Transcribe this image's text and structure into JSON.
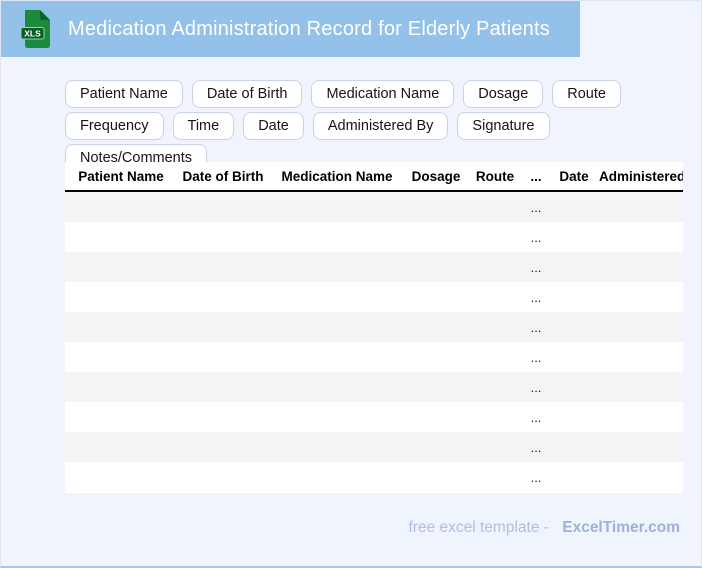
{
  "header": {
    "title": "Medication Administration Record for Elderly Patients",
    "bar_color": "#93c1e9",
    "file_icon_label": "XLS",
    "file_icon_color": "#1c8a3c"
  },
  "field_chips": [
    "Patient Name",
    "Date of Birth",
    "Medication Name",
    "Dosage",
    "Route",
    "Frequency",
    "Time",
    "Date",
    "Administered By",
    "Signature",
    "Notes/Comments"
  ],
  "table": {
    "columns": [
      "Patient Name",
      "Date of Birth",
      "Medication Name",
      "Dosage",
      "Route",
      "...",
      "Date",
      "Administered By"
    ],
    "rows": [
      [
        "",
        "",
        "",
        "",
        "",
        "...",
        "",
        ""
      ],
      [
        "",
        "",
        "",
        "",
        "",
        "...",
        "",
        ""
      ],
      [
        "",
        "",
        "",
        "",
        "",
        "...",
        "",
        ""
      ],
      [
        "",
        "",
        "",
        "",
        "",
        "...",
        "",
        ""
      ],
      [
        "",
        "",
        "",
        "",
        "",
        "...",
        "",
        ""
      ],
      [
        "",
        "",
        "",
        "",
        "",
        "...",
        "",
        ""
      ],
      [
        "",
        "",
        "",
        "",
        "",
        "...",
        "",
        ""
      ],
      [
        "",
        "",
        "",
        "",
        "",
        "...",
        "",
        ""
      ],
      [
        "",
        "",
        "",
        "",
        "",
        "...",
        "",
        ""
      ],
      [
        "",
        "",
        "",
        "",
        "",
        "...",
        "",
        ""
      ]
    ]
  },
  "footer": {
    "tagline": "free excel template -",
    "brand": "ExcelTimer.com"
  }
}
